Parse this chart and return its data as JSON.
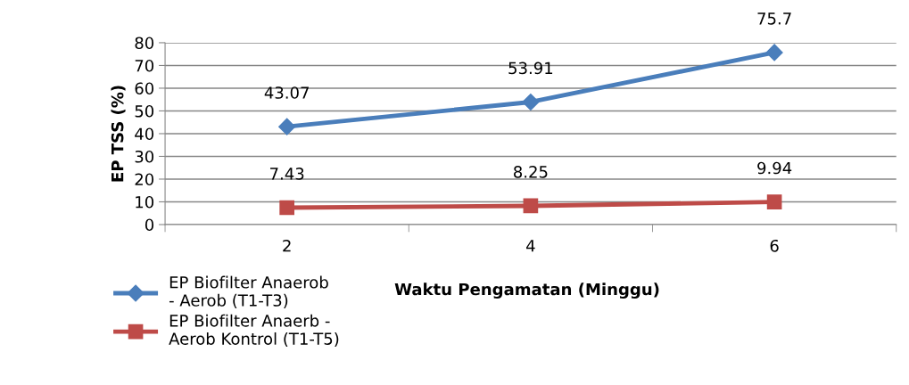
{
  "chart_data": {
    "type": "line",
    "categories": [
      "2",
      "4",
      "6"
    ],
    "xlabel": "Waktu Pengamatan (Minggu)",
    "ylabel": "EP TSS (%)",
    "series": [
      {
        "name": "EP Biofilter Anaerob - Aerob (T1-T3)",
        "color": "#4a7ebb",
        "marker": "diamond",
        "values": [
          43.07,
          53.91,
          75.7
        ]
      },
      {
        "name": "EP Biofilter Anaerb - Aerob Kontrol (T1-T5)",
        "color": "#be4b48",
        "marker": "square",
        "values": [
          7.43,
          8.25,
          9.94
        ]
      }
    ],
    "ylim": [
      0,
      80
    ],
    "yticks": [
      0,
      10,
      20,
      30,
      40,
      50,
      60,
      70,
      80
    ],
    "grid": "y",
    "legend": "bottom left",
    "data_labels": true,
    "line_style": "solid"
  }
}
